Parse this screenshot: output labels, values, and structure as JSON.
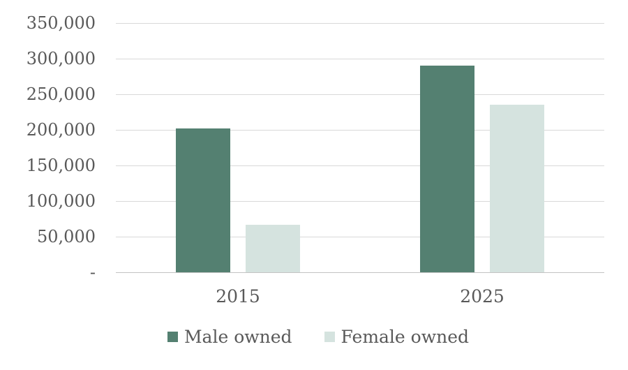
{
  "chart_data": {
    "type": "bar",
    "title": "",
    "xlabel": "",
    "ylabel": "",
    "categories": [
      "2015",
      "2025"
    ],
    "series": [
      {
        "name": "Male owned",
        "color": "#548071",
        "values": [
          202000,
          290000
        ]
      },
      {
        "name": "Female owned",
        "color": "#d5e3df",
        "values": [
          67000,
          235000
        ]
      }
    ],
    "ylim": [
      0,
      350000
    ],
    "ytick_step": 50000,
    "ytick_labels": [
      "-",
      "50,000",
      "100,000",
      "150,000",
      "200,000",
      "250,000",
      "300,000",
      "350,000"
    ],
    "grid": true,
    "gridline_color": "#d9d9d9",
    "axis_line_color": "#c3c3c3",
    "text_color": "#595959",
    "legend_position": "bottom"
  }
}
